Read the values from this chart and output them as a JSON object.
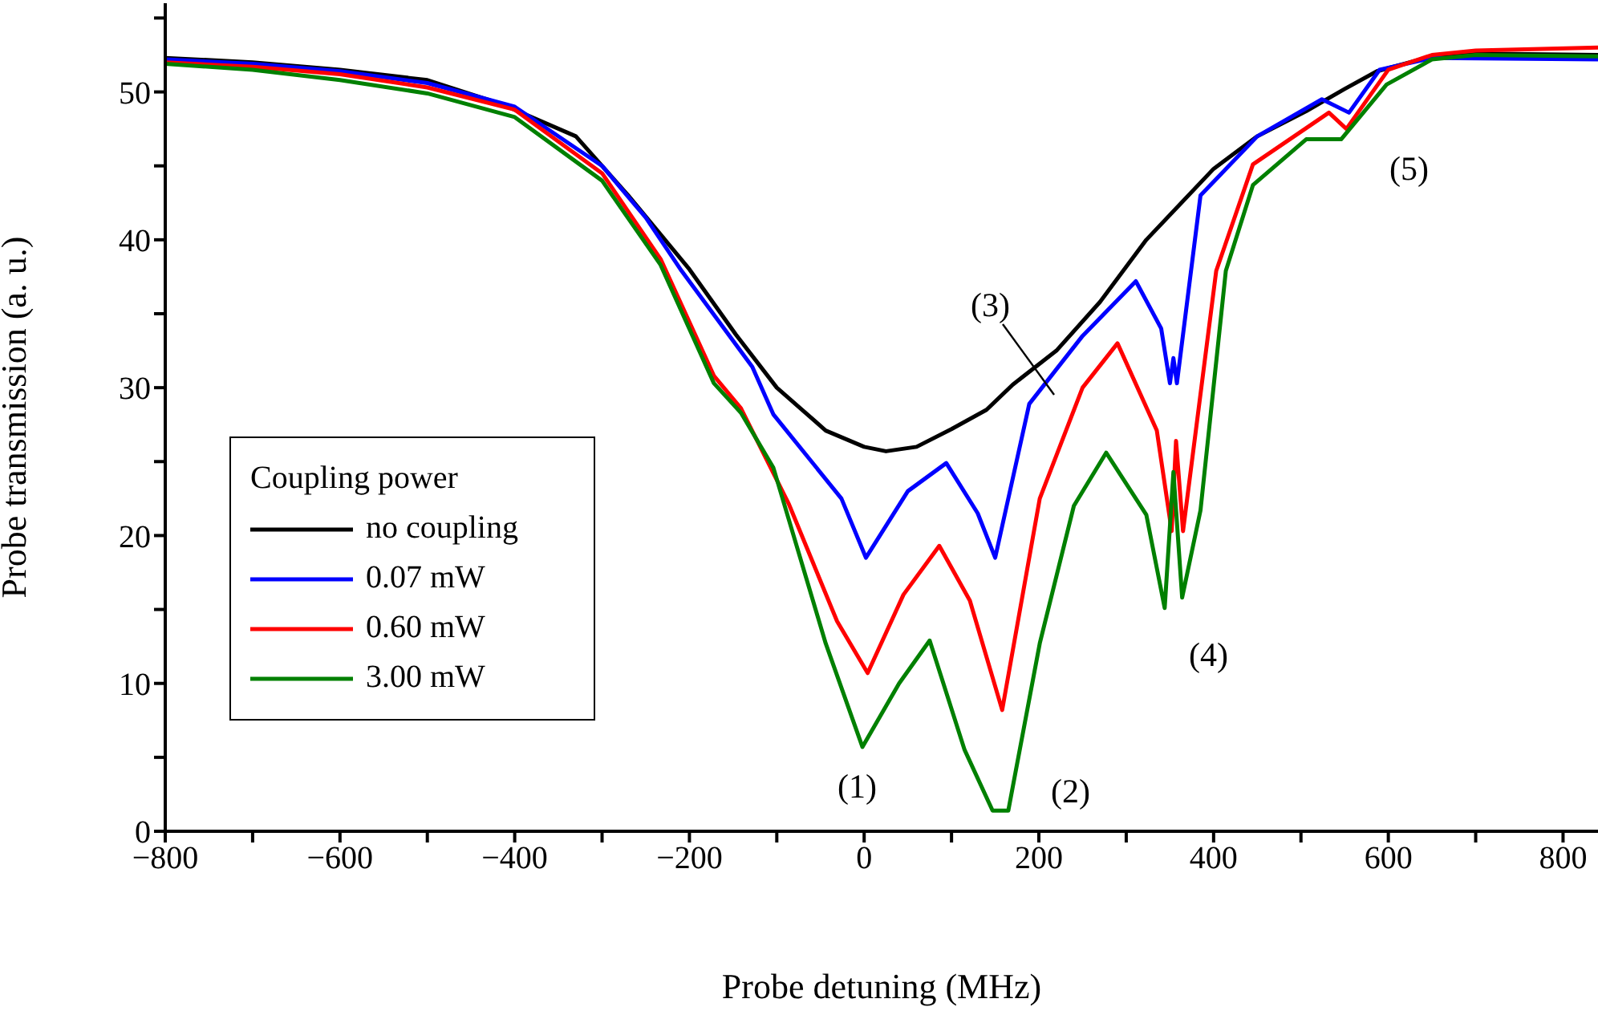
{
  "chart_data": {
    "type": "line",
    "xlabel": "Probe detuning (MHz)",
    "ylabel": "Probe transmission (a. u.)",
    "legend_title": "Coupling power",
    "legend": "bottom left",
    "grid": false,
    "marker": "none",
    "line_style": "solid",
    "xlim": [
      -800,
      840
    ],
    "ylim": [
      0,
      56
    ],
    "xticks": [
      -800,
      {
        "value": -700,
        "label": null
      },
      -600,
      {
        "value": -500,
        "label": null
      },
      -400,
      {
        "value": -300,
        "label": null
      },
      -200,
      {
        "value": -100,
        "label": null
      },
      0,
      {
        "value": 100,
        "label": null
      },
      200,
      {
        "value": 300,
        "label": null
      },
      400,
      {
        "value": 500,
        "label": null
      },
      600,
      {
        "value": 700,
        "label": null
      },
      800
    ],
    "yticks": [
      0,
      {
        "value": 5,
        "label": null
      },
      10,
      {
        "value": 15,
        "label": null
      },
      20,
      {
        "value": 25,
        "label": null
      },
      30,
      {
        "value": 35,
        "label": null
      },
      40,
      {
        "value": 45,
        "label": null
      },
      50,
      {
        "value": 55,
        "label": null
      }
    ],
    "series": [
      {
        "name": "no coupling",
        "color": "#000000",
        "x": [
          -800,
          -700,
          -600,
          -500,
          -416,
          -330,
          -270,
          -200,
          -147,
          -100,
          -44,
          0,
          25,
          60,
          100,
          140,
          170,
          220,
          270,
          323,
          400,
          450,
          506,
          550,
          587,
          650,
          700,
          840
        ],
        "values": [
          52.3,
          52,
          51.5,
          50.8,
          49.2,
          47,
          43,
          38,
          33.6,
          30,
          27.1,
          26,
          25.7,
          26,
          27.2,
          28.5,
          30.2,
          32.5,
          35.8,
          40,
          44.8,
          47,
          48.7,
          50.2,
          51.4,
          52.4,
          52.6,
          52.5
        ]
      },
      {
        "name": "0.07 mW",
        "color": "#0000ff",
        "x": [
          -800,
          -700,
          -600,
          -500,
          -400,
          -300,
          -250,
          -209,
          -128,
          -104,
          -26,
          2,
          50,
          94,
          130,
          150,
          189,
          250,
          311,
          340,
          350,
          354,
          358,
          385,
          450,
          524,
          555,
          590,
          650,
          840
        ],
        "values": [
          52.2,
          51.9,
          51.4,
          50.6,
          49,
          45,
          41.5,
          37.9,
          31.4,
          28.2,
          22.5,
          18.5,
          23,
          24.9,
          21.5,
          18.5,
          28.9,
          33.5,
          37.2,
          34,
          30.3,
          32,
          30.3,
          43,
          47,
          49.5,
          48.6,
          51.5,
          52.3,
          52.2
        ]
      },
      {
        "name": "0.60 mW",
        "color": "#ff0000",
        "x": [
          -800,
          -700,
          -600,
          -500,
          -400,
          -300,
          -233,
          -172,
          -141,
          -86,
          -31,
          4,
          45,
          86,
          121,
          158,
          201,
          250,
          290,
          335,
          352,
          357,
          365,
          403,
          445,
          532,
          552,
          600,
          650,
          700,
          840
        ],
        "values": [
          52,
          51.7,
          51.2,
          50.3,
          48.8,
          44.5,
          38.7,
          30.8,
          28.6,
          22.1,
          14.2,
          10.7,
          16,
          19.3,
          15.6,
          8.2,
          22.5,
          30,
          33,
          27.1,
          20.3,
          26.4,
          20.3,
          37.9,
          45.1,
          48.6,
          47.5,
          51.5,
          52.5,
          52.8,
          53
        ]
      },
      {
        "name": "3.00 mW",
        "color": "#008000",
        "x": [
          -800,
          -700,
          -600,
          -500,
          -400,
          -300,
          -233,
          -172,
          -141,
          -104,
          -44,
          -2,
          40,
          75,
          115,
          147,
          165,
          201,
          240,
          277,
          323,
          344,
          354,
          364,
          385,
          414,
          445,
          506,
          546,
          598,
          650,
          700,
          840
        ],
        "values": [
          51.9,
          51.5,
          50.8,
          49.9,
          48.3,
          44,
          38.3,
          30.3,
          28.3,
          24.6,
          12.7,
          5.7,
          10,
          12.9,
          5.5,
          1.4,
          1.4,
          12.7,
          22,
          25.6,
          21.4,
          15.1,
          24.3,
          15.8,
          21.7,
          37.9,
          43.7,
          46.8,
          46.8,
          50.5,
          52.2,
          52.5,
          52.4
        ]
      }
    ],
    "annotations": [
      "(1)",
      "(2)",
      "(3)",
      "(4)",
      "(5)"
    ]
  }
}
